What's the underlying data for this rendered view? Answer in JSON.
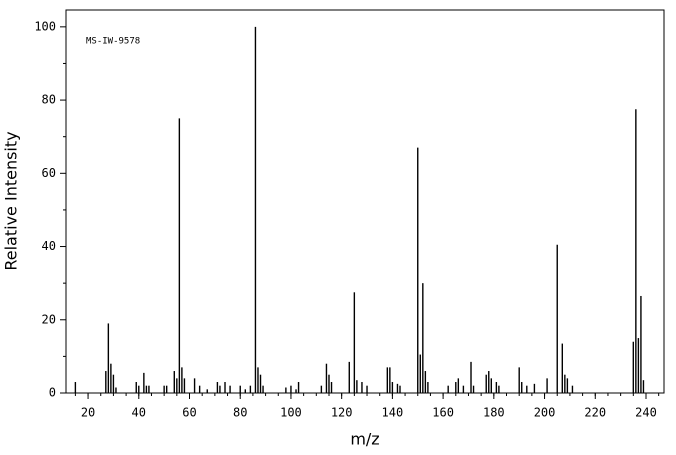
{
  "chart_data": {
    "type": "stem",
    "annotation": "MS-IW-9578",
    "xlabel": "m/z",
    "ylabel": "Relative Intensity",
    "x": [
      15,
      27,
      28,
      29,
      30,
      31,
      39,
      40,
      42,
      43,
      44,
      50,
      51,
      54,
      55,
      56,
      57,
      58,
      62,
      64,
      67,
      71,
      72,
      74,
      76,
      80,
      82,
      84,
      86,
      87,
      88,
      89,
      98,
      100,
      102,
      103,
      112,
      114,
      115,
      116,
      123,
      125,
      126,
      128,
      130,
      138,
      139,
      140,
      142,
      143,
      150,
      151,
      152,
      153,
      154,
      162,
      165,
      166,
      168,
      171,
      172,
      177,
      178,
      179,
      181,
      182,
      190,
      191,
      193,
      196,
      201,
      205,
      207,
      208,
      209,
      211,
      235,
      236,
      237,
      238,
      239
    ],
    "values": [
      3,
      6,
      19,
      8,
      5,
      1.5,
      3,
      2,
      5.5,
      2,
      2,
      2,
      2,
      6,
      4,
      75,
      7,
      4,
      4,
      2,
      1,
      3,
      2,
      3,
      2,
      2,
      1,
      2,
      100,
      7,
      5,
      2,
      1.5,
      2,
      1,
      3,
      2,
      8,
      5,
      3,
      8.5,
      27.5,
      3.5,
      3,
      2,
      7,
      7,
      3,
      2.5,
      2,
      67,
      10.5,
      30,
      6,
      3,
      2,
      3,
      4,
      2,
      8.5,
      2,
      5,
      6,
      4,
      3,
      2,
      7,
      3,
      2,
      2.5,
      4,
      40.5,
      13.5,
      5,
      4,
      2,
      14,
      77.5,
      15,
      26.5,
      3.5
    ],
    "color": "#000000",
    "xlim": [
      11.3,
      247.1
    ],
    "xticks": [
      20,
      40,
      60,
      80,
      100,
      120,
      140,
      160,
      180,
      200,
      220,
      240
    ],
    "ylim": [
      0,
      104.6
    ],
    "yticks": [
      0,
      20,
      40,
      60,
      80,
      100
    ]
  }
}
